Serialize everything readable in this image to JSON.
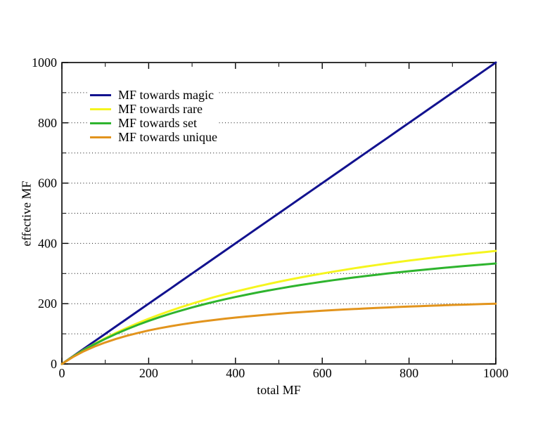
{
  "page": {
    "background": "#ffffff",
    "axis_color": "#000000"
  },
  "chart_data": {
    "type": "line",
    "title": "",
    "xlabel": "total MF",
    "ylabel": "effective MF",
    "xlim": [
      0,
      1000
    ],
    "ylim": [
      0,
      1000
    ],
    "x_major_ticks": [
      0,
      200,
      400,
      600,
      800,
      1000
    ],
    "x_minor_ticks": [
      100,
      300,
      500,
      700,
      900
    ],
    "y_major_ticks": [
      0,
      200,
      400,
      600,
      800,
      1000
    ],
    "y_minor_ticks": [
      100,
      300,
      500,
      700,
      900
    ],
    "y_gridlines": [
      100,
      200,
      300,
      400,
      500,
      600,
      700,
      800,
      900
    ],
    "grid_style": "dotted horizontal only",
    "legend_position": "top-left inside, opaque",
    "x": [
      0,
      25,
      50,
      75,
      100,
      125,
      150,
      175,
      200,
      225,
      250,
      275,
      300,
      325,
      350,
      375,
      400,
      425,
      450,
      475,
      500,
      525,
      550,
      575,
      600,
      625,
      650,
      675,
      700,
      725,
      750,
      775,
      800,
      825,
      850,
      875,
      900,
      925,
      950,
      975,
      1000
    ],
    "series": [
      {
        "id": "magic",
        "name": "MF towards magic",
        "color": "#12128f",
        "values": [
          0,
          25,
          50,
          75,
          100,
          125,
          150,
          175,
          200,
          225,
          250,
          275,
          300,
          325,
          350,
          375,
          400,
          425,
          450,
          475,
          500,
          525,
          550,
          575,
          600,
          625,
          650,
          675,
          700,
          725,
          750,
          775,
          800,
          825,
          850,
          875,
          900,
          925,
          950,
          975,
          1000
        ]
      },
      {
        "id": "rare",
        "name": "MF towards rare",
        "color": "#f5f51e",
        "values": [
          0,
          24,
          46.2,
          66.7,
          85.7,
          103.4,
          120,
          135.5,
          150,
          163.6,
          176.5,
          188.6,
          200,
          210.8,
          221.1,
          230.8,
          240,
          248.8,
          257.1,
          265.1,
          272.7,
          280,
          287,
          293.6,
          300,
          306.1,
          312,
          317.6,
          323.1,
          328.3,
          333.3,
          338.2,
          342.9,
          347.4,
          351.7,
          355.9,
          360,
          363.9,
          367.7,
          371.4,
          375
        ]
      },
      {
        "id": "set",
        "name": "MF towards set",
        "color": "#2eb42e",
        "values": [
          0,
          23.8,
          45.5,
          65.2,
          83.3,
          100,
          115.4,
          129.6,
          142.9,
          155.2,
          166.7,
          177.4,
          187.5,
          197,
          205.9,
          214.3,
          222.2,
          229.7,
          236.8,
          243.6,
          250,
          256.1,
          261.9,
          267.4,
          272.7,
          277.8,
          282.6,
          287.2,
          291.7,
          295.9,
          300,
          303.9,
          307.7,
          311.3,
          314.8,
          318.2,
          321.4,
          324.6,
          327.6,
          330.5,
          333.3
        ]
      },
      {
        "id": "unique",
        "name": "MF towards unique",
        "color": "#e2941d",
        "values": [
          0,
          22.7,
          41.7,
          57.7,
          71.4,
          83.3,
          93.8,
          102.9,
          111.1,
          118.4,
          125,
          131,
          136.4,
          141.3,
          145.8,
          150,
          153.8,
          157.4,
          160.7,
          163.8,
          166.7,
          169.4,
          171.9,
          174.2,
          176.5,
          178.6,
          180.6,
          182.4,
          184.2,
          185.9,
          187.5,
          189,
          190.5,
          191.9,
          193.2,
          194.4,
          195.7,
          196.8,
          197.9,
          199,
          200
        ]
      }
    ]
  }
}
